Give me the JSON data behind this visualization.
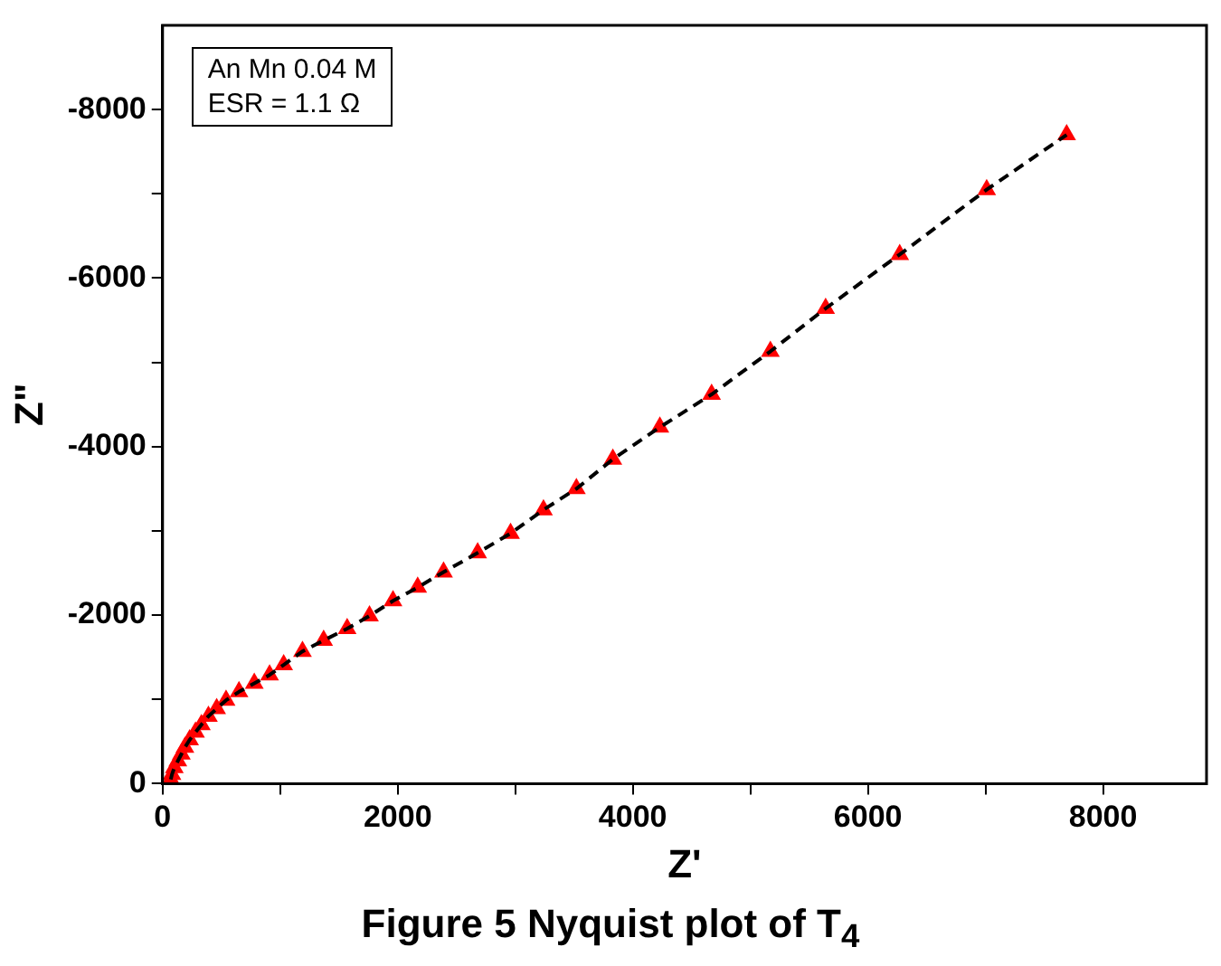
{
  "chart_data": {
    "type": "scatter",
    "title": "Figure 5 Nyquist plot of T$_{4}$",
    "xlabel": "Z'",
    "ylabel": "Z\"",
    "annotations": [
      "An Mn 0.04 M",
      "ESR = 1.1 Ω"
    ],
    "xlim": [
      0,
      8880
    ],
    "xticks": [
      0,
      {
        "value": 1000,
        "label": null
      },
      2000,
      {
        "value": 3000,
        "label": null
      },
      4000,
      {
        "value": 5000,
        "label": null
      },
      6000,
      {
        "value": 7000,
        "label": null
      },
      8000
    ],
    "ylim": [
      0,
      -9000
    ],
    "yticks": [
      0,
      {
        "value": -1000,
        "label": null
      },
      -2000,
      {
        "value": -3000,
        "label": null
      },
      -4000,
      {
        "value": -5000,
        "label": null
      },
      -6000,
      {
        "value": -7000,
        "label": null
      },
      -8000
    ],
    "grid": false,
    "series": [
      {
        "type": "line",
        "color": "#000000",
        "line_style": "dashed",
        "marker": "none",
        "x": [
          70,
          80,
          100,
          130,
          160,
          190,
          230,
          280,
          330,
          390,
          460,
          540,
          650,
          780,
          910,
          1030,
          1190,
          1370,
          1570,
          1760,
          1960,
          2170,
          2390,
          2680,
          2960,
          3240,
          3520,
          3830,
          4230,
          4670,
          5170,
          5640,
          6270,
          7010,
          7690
        ],
        "values": [
          -50,
          -110,
          -190,
          -270,
          -350,
          -430,
          -520,
          -610,
          -700,
          -800,
          -890,
          -990,
          -1090,
          -1190,
          -1290,
          -1410,
          -1570,
          -1700,
          -1840,
          -1990,
          -2170,
          -2330,
          -2510,
          -2740,
          -2970,
          -3250,
          -3500,
          -3850,
          -4230,
          -4620,
          -5130,
          -5640,
          -6280,
          -7050,
          -7700
        ]
      },
      {
        "color": "#ff0000",
        "marker": "triangle",
        "x": [
          70,
          80,
          100,
          130,
          160,
          190,
          230,
          280,
          330,
          390,
          460,
          540,
          650,
          780,
          910,
          1030,
          1190,
          1370,
          1570,
          1760,
          1960,
          2170,
          2390,
          2680,
          2960,
          3240,
          3520,
          3830,
          4230,
          4670,
          5170,
          5640,
          6270,
          7010,
          7690
        ],
        "values": [
          -50,
          -110,
          -190,
          -270,
          -350,
          -430,
          -520,
          -610,
          -700,
          -800,
          -890,
          -990,
          -1090,
          -1190,
          -1290,
          -1410,
          -1570,
          -1700,
          -1840,
          -1990,
          -2170,
          -2330,
          -2510,
          -2740,
          -2970,
          -3250,
          -3500,
          -3850,
          -4230,
          -4620,
          -5130,
          -5640,
          -6280,
          -7050,
          -7700
        ]
      }
    ]
  }
}
